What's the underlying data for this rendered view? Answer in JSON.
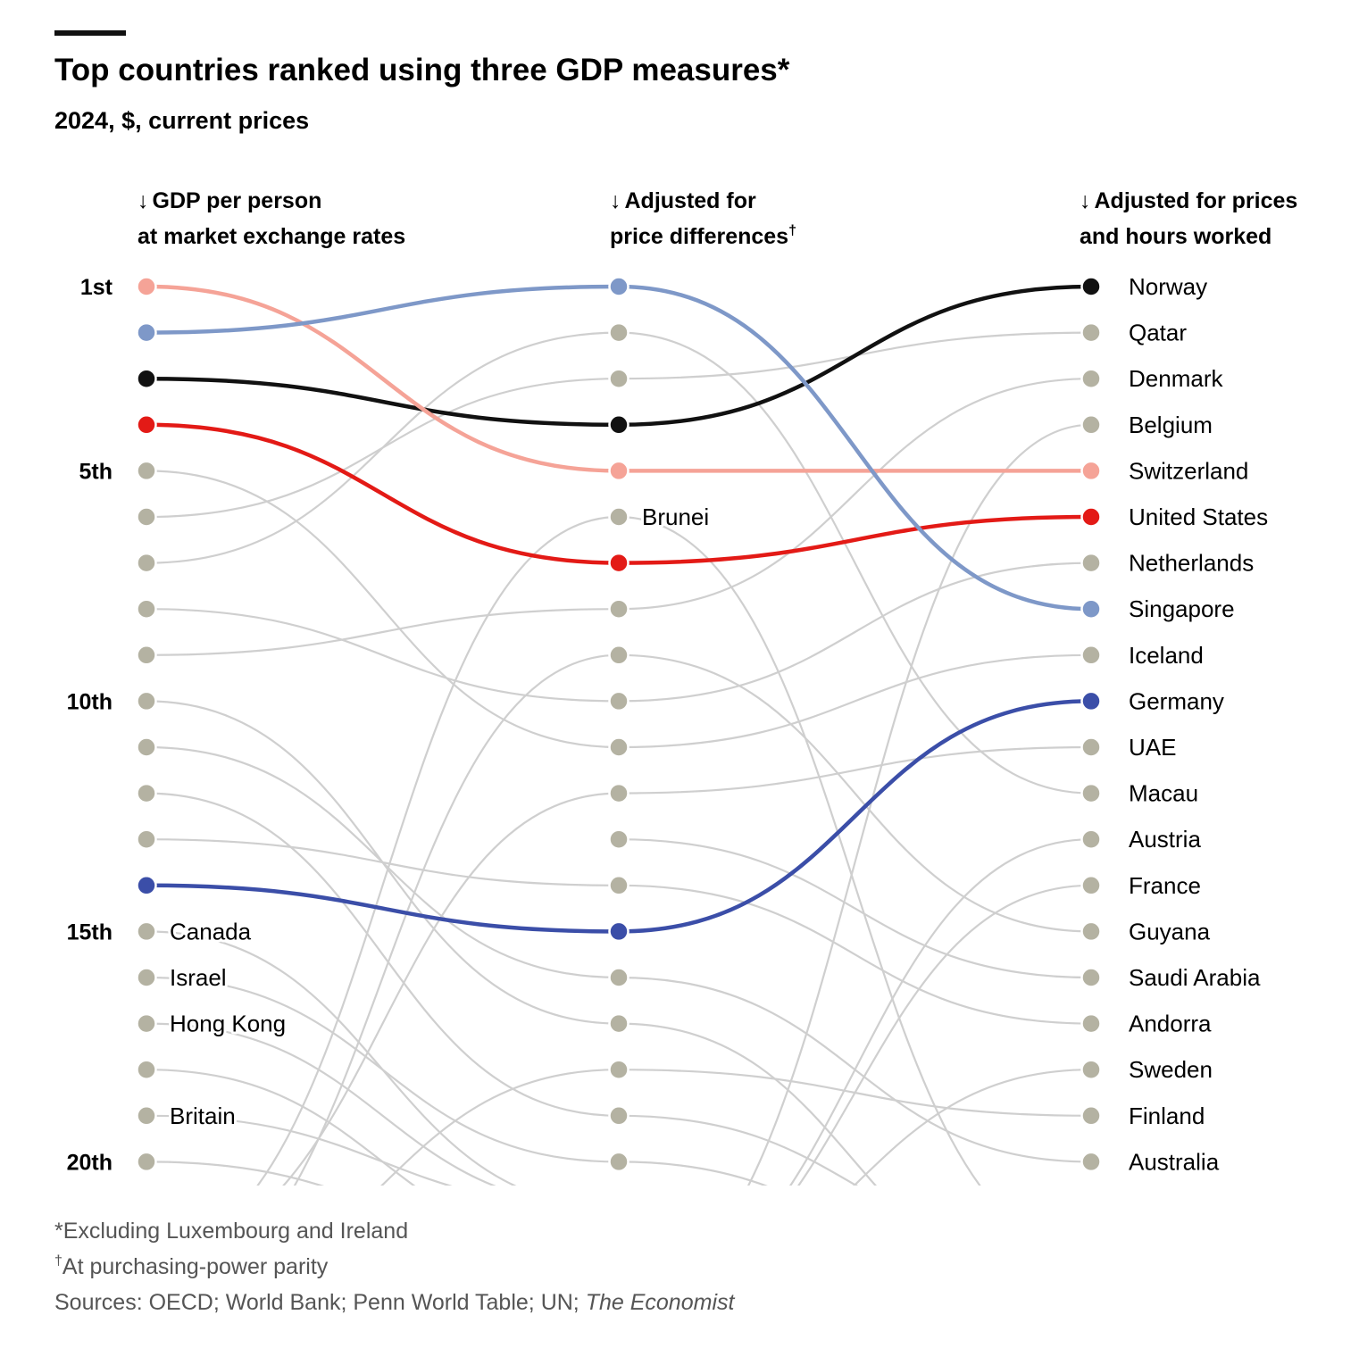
{
  "title": "Top countries ranked using three GDP measures*",
  "subtitle": "2024, $, current prices",
  "colors": {
    "grey_line": "#cfcfcf",
    "grey_dot": "#b4b2a2",
    "norway": "#111111",
    "switzerland": "#f5a397",
    "united_states": "#e31a16",
    "singapore": "#7e98c8",
    "germany": "#3b4ea8",
    "accent_bar": "#111111"
  },
  "chart_data": {
    "type": "slope",
    "columns": [
      {
        "id": "mer",
        "arrow": "↓",
        "line1": "GDP per person",
        "line2": "at market exchange rates",
        "dagger": ""
      },
      {
        "id": "ppp",
        "arrow": "↓",
        "line1": "Adjusted for",
        "line2": "price differences",
        "dagger": "†"
      },
      {
        "id": "hours",
        "arrow": "↓",
        "line1": "Adjusted for prices",
        "line2": "and hours worked",
        "dagger": ""
      }
    ],
    "rank_labels": [
      {
        "rank": 1,
        "label": "1st"
      },
      {
        "rank": 5,
        "label": "5th"
      },
      {
        "rank": 10,
        "label": "10th"
      },
      {
        "rank": 15,
        "label": "15th"
      },
      {
        "rank": 20,
        "label": "20th"
      }
    ],
    "visible_ranks": 20,
    "final_ranking": [
      "Norway",
      "Qatar",
      "Denmark",
      "Belgium",
      "Switzerland",
      "United States",
      "Netherlands",
      "Singapore",
      "Iceland",
      "Germany",
      "UAE",
      "Macau",
      "Austria",
      "France",
      "Guyana",
      "Saudi Arabia",
      "Andorra",
      "Sweden",
      "Finland",
      "Australia"
    ],
    "highlighted": [
      {
        "country": "Norway",
        "ranks": [
          3,
          4,
          1
        ],
        "color_key": "norway"
      },
      {
        "country": "Switzerland",
        "ranks": [
          1,
          5,
          5
        ],
        "color_key": "switzerland"
      },
      {
        "country": "United States",
        "ranks": [
          4,
          7,
          6
        ],
        "color_key": "united_states"
      },
      {
        "country": "Singapore",
        "ranks": [
          2,
          1,
          8
        ],
        "color_key": "singapore"
      },
      {
        "country": "Germany",
        "ranks": [
          14,
          15,
          10
        ],
        "color_key": "germany"
      }
    ],
    "segments_mer_to_ppp": [
      [
        5,
        11
      ],
      [
        6,
        3
      ],
      [
        7,
        2
      ],
      [
        8,
        10
      ],
      [
        9,
        8
      ],
      [
        10,
        17
      ],
      [
        11,
        16
      ],
      [
        12,
        19
      ],
      [
        13,
        14
      ],
      [
        15,
        21
      ],
      [
        16,
        20
      ],
      [
        17,
        21
      ],
      [
        18,
        22
      ],
      [
        19,
        21
      ],
      [
        20,
        22
      ],
      [
        23,
        9
      ],
      [
        22,
        6
      ],
      [
        23,
        18
      ],
      [
        22,
        12
      ]
    ],
    "segments_ppp_to_hours": [
      [
        2,
        12
      ],
      [
        3,
        2
      ],
      [
        6,
        22
      ],
      [
        8,
        3
      ],
      [
        9,
        15
      ],
      [
        10,
        7
      ],
      [
        11,
        9
      ],
      [
        12,
        11
      ],
      [
        13,
        16
      ],
      [
        14,
        17
      ],
      [
        16,
        20
      ],
      [
        17,
        23
      ],
      [
        18,
        19
      ],
      [
        19,
        22
      ],
      [
        20,
        23
      ],
      [
        23,
        4
      ],
      [
        23,
        13
      ],
      [
        23,
        14
      ],
      [
        23,
        18
      ]
    ],
    "inline_labels": [
      {
        "column": "ppp",
        "rank": 6,
        "label": "Brunei"
      },
      {
        "column": "mer",
        "rank": 15,
        "label": "Canada"
      },
      {
        "column": "mer",
        "rank": 16,
        "label": "Israel"
      },
      {
        "column": "mer",
        "rank": 17,
        "label": "Hong Kong"
      },
      {
        "column": "mer",
        "rank": 19,
        "label": "Britain"
      }
    ]
  },
  "footnotes": {
    "star": "*Excluding Luxembourg and Ireland",
    "dagger_mark": "†",
    "dagger_text": "At purchasing-power parity",
    "sources_prefix": "Sources: OECD; World Bank; Penn World Table; UN; ",
    "sources_italic": "The Economist"
  }
}
